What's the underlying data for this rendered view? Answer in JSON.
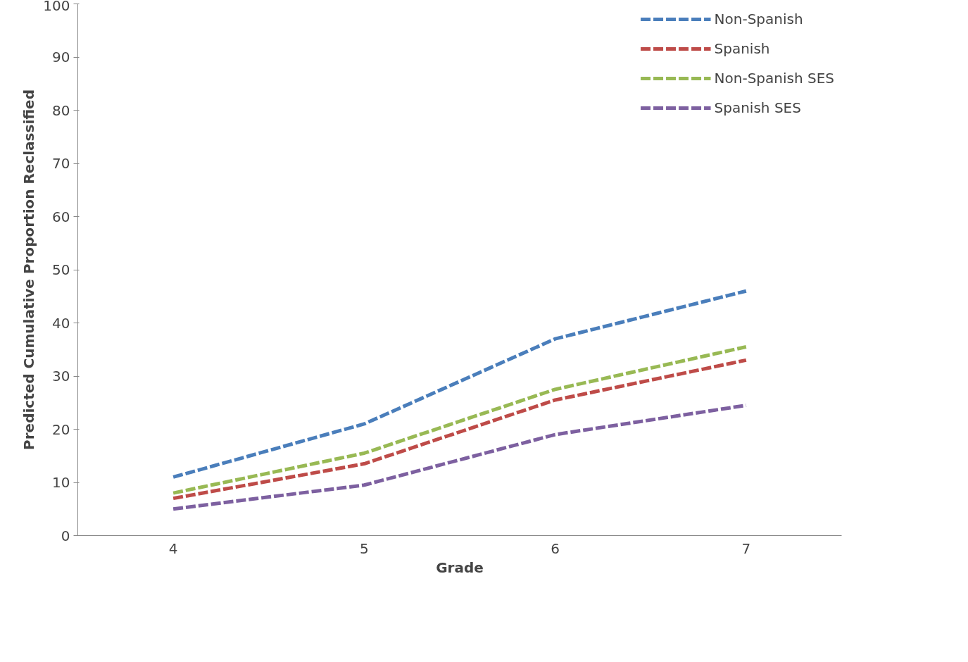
{
  "chart_data": {
    "type": "line",
    "xlabel": "Grade",
    "ylabel": "Predicted Cumulative Proportion Reclassified",
    "categories": [
      "4",
      "5",
      "6",
      "7"
    ],
    "series": [
      {
        "name": "Non-Spanish",
        "color": "#4a7ebb",
        "values": [
          11,
          21,
          37,
          46
        ]
      },
      {
        "name": "Spanish",
        "color": "#be4b48",
        "values": [
          7,
          13.5,
          25.5,
          33
        ]
      },
      {
        "name": "Non-Spanish SES",
        "color": "#98b954",
        "values": [
          8,
          15.5,
          27.5,
          35.5
        ]
      },
      {
        "name": "Spanish SES",
        "color": "#7d60a0",
        "values": [
          5,
          9.5,
          19,
          24.5
        ]
      }
    ],
    "ylim": [
      0,
      100
    ],
    "yticks": [
      0,
      10,
      20,
      30,
      40,
      50,
      60,
      70,
      80,
      90,
      100
    ],
    "grid": false,
    "legend": "top right",
    "line_style": "dashed",
    "marker": "none"
  }
}
